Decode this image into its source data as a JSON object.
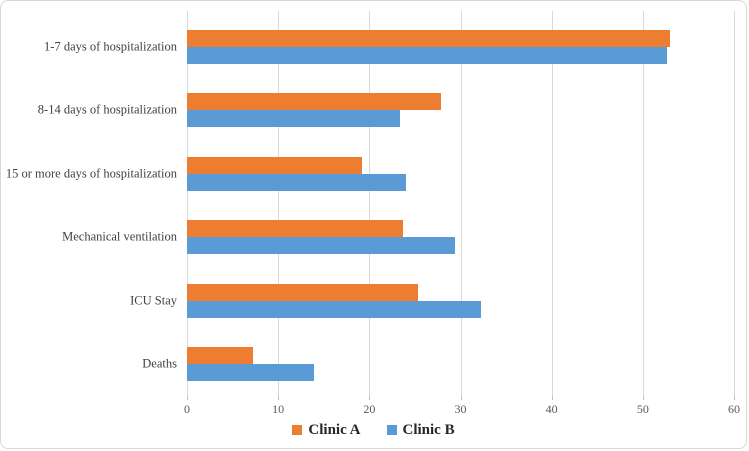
{
  "chart_data": {
    "type": "bar",
    "orientation": "horizontal",
    "title": "",
    "xlabel": "",
    "ylabel": "",
    "categories": [
      "1-7 days of hospitalization",
      "8-14 days of hospitalization",
      "15 or more days of hospitalization",
      "Mechanical ventilation",
      "ICU Stay",
      "Deaths"
    ],
    "series": [
      {
        "name": "Clinic A",
        "color": "#ED7D31",
        "values": [
          53.0,
          27.9,
          19.2,
          23.7,
          25.3,
          7.2
        ]
      },
      {
        "name": "Clinic B",
        "color": "#5B9BD5",
        "values": [
          52.6,
          23.4,
          24.0,
          29.4,
          32.2,
          13.9
        ]
      }
    ],
    "xlim": [
      0,
      60
    ],
    "x_ticks": [
      0,
      10,
      20,
      30,
      40,
      50,
      60
    ],
    "grid": true,
    "gridline_color": "#D9D9D9",
    "legend_position": "bottom"
  }
}
